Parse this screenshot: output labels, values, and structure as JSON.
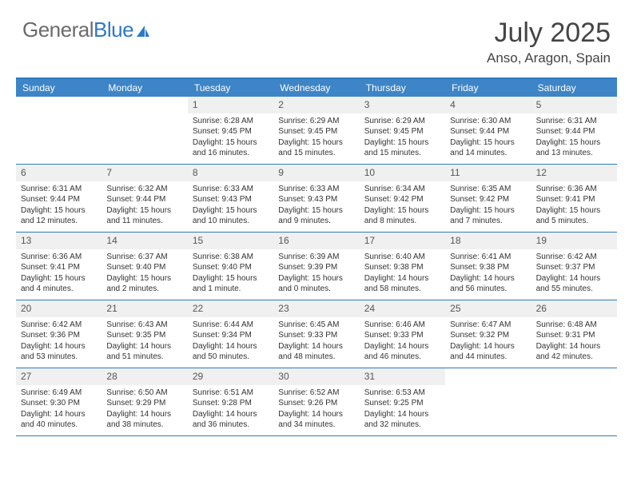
{
  "logo": {
    "general": "General",
    "blue": "Blue"
  },
  "title": "July 2025",
  "location": "Anso, Aragon, Spain",
  "colors": {
    "header_bar": "#3d85c6",
    "border": "#2f7ac0",
    "day_num_bg": "#f0f0f0",
    "text": "#333333",
    "title_text": "#444444",
    "logo_gray": "#6b6b6b",
    "logo_blue": "#2f7ac0"
  },
  "weekdays": [
    "Sunday",
    "Monday",
    "Tuesday",
    "Wednesday",
    "Thursday",
    "Friday",
    "Saturday"
  ],
  "weeks": [
    [
      {
        "empty": true
      },
      {
        "empty": true
      },
      {
        "num": "1",
        "sunrise": "Sunrise: 6:28 AM",
        "sunset": "Sunset: 9:45 PM",
        "daylight1": "Daylight: 15 hours",
        "daylight2": "and 16 minutes."
      },
      {
        "num": "2",
        "sunrise": "Sunrise: 6:29 AM",
        "sunset": "Sunset: 9:45 PM",
        "daylight1": "Daylight: 15 hours",
        "daylight2": "and 15 minutes."
      },
      {
        "num": "3",
        "sunrise": "Sunrise: 6:29 AM",
        "sunset": "Sunset: 9:45 PM",
        "daylight1": "Daylight: 15 hours",
        "daylight2": "and 15 minutes."
      },
      {
        "num": "4",
        "sunrise": "Sunrise: 6:30 AM",
        "sunset": "Sunset: 9:44 PM",
        "daylight1": "Daylight: 15 hours",
        "daylight2": "and 14 minutes."
      },
      {
        "num": "5",
        "sunrise": "Sunrise: 6:31 AM",
        "sunset": "Sunset: 9:44 PM",
        "daylight1": "Daylight: 15 hours",
        "daylight2": "and 13 minutes."
      }
    ],
    [
      {
        "num": "6",
        "sunrise": "Sunrise: 6:31 AM",
        "sunset": "Sunset: 9:44 PM",
        "daylight1": "Daylight: 15 hours",
        "daylight2": "and 12 minutes."
      },
      {
        "num": "7",
        "sunrise": "Sunrise: 6:32 AM",
        "sunset": "Sunset: 9:44 PM",
        "daylight1": "Daylight: 15 hours",
        "daylight2": "and 11 minutes."
      },
      {
        "num": "8",
        "sunrise": "Sunrise: 6:33 AM",
        "sunset": "Sunset: 9:43 PM",
        "daylight1": "Daylight: 15 hours",
        "daylight2": "and 10 minutes."
      },
      {
        "num": "9",
        "sunrise": "Sunrise: 6:33 AM",
        "sunset": "Sunset: 9:43 PM",
        "daylight1": "Daylight: 15 hours",
        "daylight2": "and 9 minutes."
      },
      {
        "num": "10",
        "sunrise": "Sunrise: 6:34 AM",
        "sunset": "Sunset: 9:42 PM",
        "daylight1": "Daylight: 15 hours",
        "daylight2": "and 8 minutes."
      },
      {
        "num": "11",
        "sunrise": "Sunrise: 6:35 AM",
        "sunset": "Sunset: 9:42 PM",
        "daylight1": "Daylight: 15 hours",
        "daylight2": "and 7 minutes."
      },
      {
        "num": "12",
        "sunrise": "Sunrise: 6:36 AM",
        "sunset": "Sunset: 9:41 PM",
        "daylight1": "Daylight: 15 hours",
        "daylight2": "and 5 minutes."
      }
    ],
    [
      {
        "num": "13",
        "sunrise": "Sunrise: 6:36 AM",
        "sunset": "Sunset: 9:41 PM",
        "daylight1": "Daylight: 15 hours",
        "daylight2": "and 4 minutes."
      },
      {
        "num": "14",
        "sunrise": "Sunrise: 6:37 AM",
        "sunset": "Sunset: 9:40 PM",
        "daylight1": "Daylight: 15 hours",
        "daylight2": "and 2 minutes."
      },
      {
        "num": "15",
        "sunrise": "Sunrise: 6:38 AM",
        "sunset": "Sunset: 9:40 PM",
        "daylight1": "Daylight: 15 hours",
        "daylight2": "and 1 minute."
      },
      {
        "num": "16",
        "sunrise": "Sunrise: 6:39 AM",
        "sunset": "Sunset: 9:39 PM",
        "daylight1": "Daylight: 15 hours",
        "daylight2": "and 0 minutes."
      },
      {
        "num": "17",
        "sunrise": "Sunrise: 6:40 AM",
        "sunset": "Sunset: 9:38 PM",
        "daylight1": "Daylight: 14 hours",
        "daylight2": "and 58 minutes."
      },
      {
        "num": "18",
        "sunrise": "Sunrise: 6:41 AM",
        "sunset": "Sunset: 9:38 PM",
        "daylight1": "Daylight: 14 hours",
        "daylight2": "and 56 minutes."
      },
      {
        "num": "19",
        "sunrise": "Sunrise: 6:42 AM",
        "sunset": "Sunset: 9:37 PM",
        "daylight1": "Daylight: 14 hours",
        "daylight2": "and 55 minutes."
      }
    ],
    [
      {
        "num": "20",
        "sunrise": "Sunrise: 6:42 AM",
        "sunset": "Sunset: 9:36 PM",
        "daylight1": "Daylight: 14 hours",
        "daylight2": "and 53 minutes."
      },
      {
        "num": "21",
        "sunrise": "Sunrise: 6:43 AM",
        "sunset": "Sunset: 9:35 PM",
        "daylight1": "Daylight: 14 hours",
        "daylight2": "and 51 minutes."
      },
      {
        "num": "22",
        "sunrise": "Sunrise: 6:44 AM",
        "sunset": "Sunset: 9:34 PM",
        "daylight1": "Daylight: 14 hours",
        "daylight2": "and 50 minutes."
      },
      {
        "num": "23",
        "sunrise": "Sunrise: 6:45 AM",
        "sunset": "Sunset: 9:33 PM",
        "daylight1": "Daylight: 14 hours",
        "daylight2": "and 48 minutes."
      },
      {
        "num": "24",
        "sunrise": "Sunrise: 6:46 AM",
        "sunset": "Sunset: 9:33 PM",
        "daylight1": "Daylight: 14 hours",
        "daylight2": "and 46 minutes."
      },
      {
        "num": "25",
        "sunrise": "Sunrise: 6:47 AM",
        "sunset": "Sunset: 9:32 PM",
        "daylight1": "Daylight: 14 hours",
        "daylight2": "and 44 minutes."
      },
      {
        "num": "26",
        "sunrise": "Sunrise: 6:48 AM",
        "sunset": "Sunset: 9:31 PM",
        "daylight1": "Daylight: 14 hours",
        "daylight2": "and 42 minutes."
      }
    ],
    [
      {
        "num": "27",
        "sunrise": "Sunrise: 6:49 AM",
        "sunset": "Sunset: 9:30 PM",
        "daylight1": "Daylight: 14 hours",
        "daylight2": "and 40 minutes."
      },
      {
        "num": "28",
        "sunrise": "Sunrise: 6:50 AM",
        "sunset": "Sunset: 9:29 PM",
        "daylight1": "Daylight: 14 hours",
        "daylight2": "and 38 minutes."
      },
      {
        "num": "29",
        "sunrise": "Sunrise: 6:51 AM",
        "sunset": "Sunset: 9:28 PM",
        "daylight1": "Daylight: 14 hours",
        "daylight2": "and 36 minutes."
      },
      {
        "num": "30",
        "sunrise": "Sunrise: 6:52 AM",
        "sunset": "Sunset: 9:26 PM",
        "daylight1": "Daylight: 14 hours",
        "daylight2": "and 34 minutes."
      },
      {
        "num": "31",
        "sunrise": "Sunrise: 6:53 AM",
        "sunset": "Sunset: 9:25 PM",
        "daylight1": "Daylight: 14 hours",
        "daylight2": "and 32 minutes."
      },
      {
        "empty": true
      },
      {
        "empty": true
      }
    ]
  ]
}
